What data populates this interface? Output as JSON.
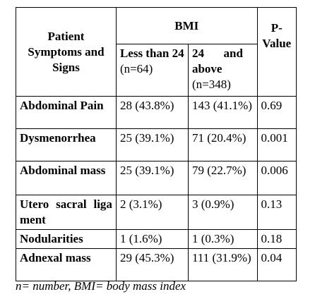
{
  "table": {
    "header": {
      "symptoms": "Patient Symptoms and Signs",
      "bmi": "BMI",
      "p_value": "P-Value",
      "group1": {
        "label": "Less than 24",
        "n": "(n=64)"
      },
      "group2": {
        "label": "24 and above",
        "n": "(n=348)"
      }
    },
    "rows": [
      [
        "Abdominal Pain",
        "28 (43.8%)",
        "143 (41.1%)",
        "0.69"
      ],
      [
        "Dysmenorrhea",
        "25 (39.1%)",
        "71 (20.4%)",
        "0.001"
      ],
      [
        "Abdominal mass",
        "25 (39.1%)",
        "79 (22.7%)",
        "0.006"
      ],
      [
        "Utero sacral ligament",
        "2 (3.1%)",
        "3 (0.9%)",
        "0.13"
      ],
      [
        "Nodularities",
        "1 (1.6%)",
        "1 (0.3%)",
        "0.18"
      ],
      [
        "Adnexal mass",
        "29 (45.3%)",
        "111 (31.9%)",
        "0.04"
      ]
    ]
  },
  "footnote": "n= number, BMI= body mass index"
}
